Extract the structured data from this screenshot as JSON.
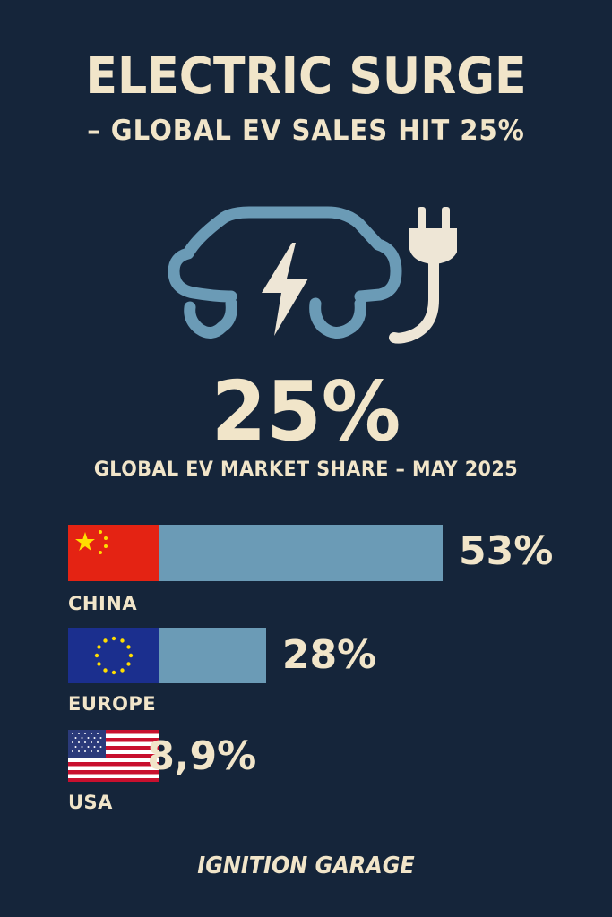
{
  "header": {
    "title": "ELECTRIC SURGE",
    "subtitle": "– GLOBAL EV SALES HIT 25%"
  },
  "hero": {
    "icon": "electric-car-plug-icon",
    "big_stat": "25%",
    "caption": "GLOBAL EV MARKET SHARE – MAY 2025"
  },
  "colors": {
    "background": "#15253a",
    "text": "#f1e5c9",
    "bar": "#6b9bb6",
    "icon_blue": "#6b9bb6",
    "icon_cream": "#eee6d6"
  },
  "chart_data": {
    "type": "bar",
    "orientation": "horizontal",
    "categories": [
      "CHINA",
      "EUROPE",
      "USA"
    ],
    "values": [
      53,
      28,
      8.9
    ],
    "value_labels": [
      "53%",
      "28%",
      "8,9%"
    ],
    "flags": [
      "china-flag-icon",
      "eu-flag-icon",
      "usa-flag-icon"
    ],
    "xlim": [
      0,
      100
    ],
    "grid": false
  },
  "footer": {
    "brand": "IGNITION GARAGE"
  }
}
